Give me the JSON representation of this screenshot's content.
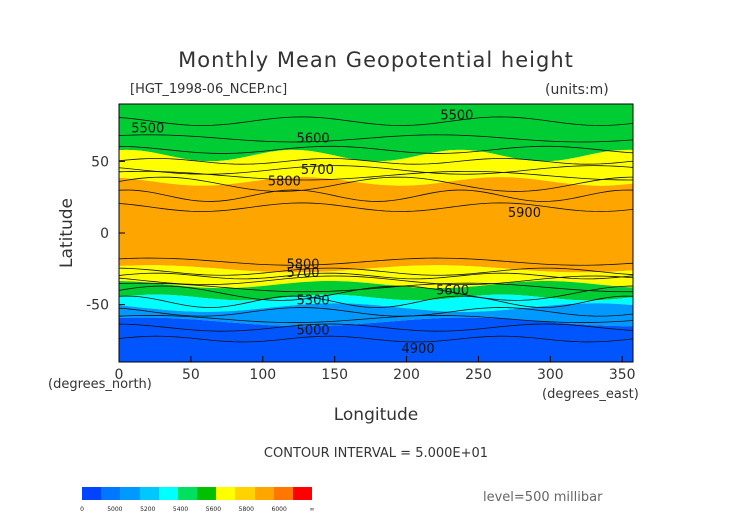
{
  "chart_data": {
    "type": "contour",
    "title": "Monthly Mean Geopotential height",
    "dataset": "[HGT_1998-06_NCEP.nc]",
    "units": "(units:m)",
    "xlabel": "Longitude",
    "ylabel": "Latitude",
    "x_unit": "(degrees_east)",
    "y_unit": "(degrees_north)",
    "xlim": [
      0,
      357.5
    ],
    "ylim": [
      -90,
      90
    ],
    "x_ticks": [
      "0",
      "50",
      "100",
      "150",
      "200",
      "250",
      "300",
      "350"
    ],
    "y_ticks": [
      "50",
      "0",
      "-50"
    ],
    "contour_interval": "CONTOUR INTERVAL = 5.000E+01",
    "level": "level=500 millibar",
    "contour_labels": [
      {
        "text": "5500",
        "lon": 20,
        "lat": 73
      },
      {
        "text": "5600",
        "lon": 135,
        "lat": 66
      },
      {
        "text": "5500",
        "lon": 235,
        "lat": 82
      },
      {
        "text": "5700",
        "lon": 138,
        "lat": 44
      },
      {
        "text": "5800",
        "lon": 115,
        "lat": 36
      },
      {
        "text": "5900",
        "lon": 282,
        "lat": 14
      },
      {
        "text": "5800",
        "lon": 128,
        "lat": -22
      },
      {
        "text": "5700",
        "lon": 128,
        "lat": -28
      },
      {
        "text": "5600",
        "lon": 232,
        "lat": -40
      },
      {
        "text": "5300",
        "lon": 135,
        "lat": -47
      },
      {
        "text": "5000",
        "lon": 135,
        "lat": -68
      },
      {
        "text": "4900",
        "lon": 208,
        "lat": -81
      }
    ],
    "bands": [
      {
        "lat_top": 90,
        "lat_bottom": 54,
        "value": "5400-5600",
        "color": "#00cc33"
      },
      {
        "lat_top": 54,
        "lat_bottom": 36,
        "value": "5600-5800",
        "color": "#ffff00"
      },
      {
        "lat_top": 36,
        "lat_bottom": -25,
        "value": "5800-6000",
        "color": "#ffa500"
      },
      {
        "lat_top": -25,
        "lat_bottom": -36,
        "value": "5600-5800",
        "color": "#ffff00"
      },
      {
        "lat_top": -36,
        "lat_bottom": -45,
        "value": "5400-5600",
        "color": "#00cc33"
      },
      {
        "lat_top": -45,
        "lat_bottom": -52,
        "value": "5200-5400",
        "color": "#00ffff"
      },
      {
        "lat_top": -52,
        "lat_bottom": -62,
        "value": "5000-5200",
        "color": "#0099ff"
      },
      {
        "lat_top": -62,
        "lat_bottom": -90,
        "value": "4800-5000",
        "color": "#0055ff"
      }
    ],
    "colorbar": {
      "colors": [
        "#0044ff",
        "#0077ff",
        "#0099ff",
        "#00c8ff",
        "#00ffff",
        "#00e060",
        "#00c000",
        "#ffff00",
        "#ffd200",
        "#ffa500",
        "#ff7700",
        "#ff0000"
      ],
      "labels": [
        "0",
        "5000",
        "5200",
        "5400",
        "5600",
        "5800",
        "6000",
        "∞"
      ]
    },
    "grid": false,
    "legend": "bottom-left colorbar"
  }
}
